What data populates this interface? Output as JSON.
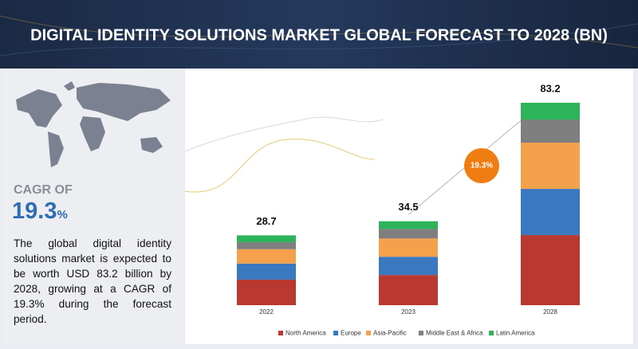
{
  "chart_data": {
    "type": "stacked-bar",
    "title": "DIGITAL IDENTITY SOLUTIONS MARKET GLOBAL FORECAST TO 2028 (BN)",
    "categories": [
      "2022",
      "2023",
      "2028"
    ],
    "totals": [
      28.7,
      34.5,
      83.2
    ],
    "ylim": [
      0,
      90
    ],
    "series": [
      {
        "name": "North America",
        "color": "#b9382f",
        "values": [
          10.5,
          12.4,
          28.8
        ]
      },
      {
        "name": "Europe",
        "color": "#3a78c0",
        "values": [
          6.6,
          7.5,
          19.0
        ]
      },
      {
        "name": "Asia-Pacific",
        "color": "#f5a04a",
        "values": [
          5.9,
          7.5,
          19.0
        ]
      },
      {
        "name": "Middle East & Africa",
        "color": "#7f7f7f",
        "values": [
          2.9,
          3.9,
          9.5
        ]
      },
      {
        "name": "Latin America",
        "color": "#2db45a",
        "values": [
          2.8,
          3.2,
          6.9
        ]
      }
    ],
    "cagr_bubble": "19.3%",
    "cagr_label": "CAGR OF",
    "cagr_value": "19.3",
    "cagr_unit": "%",
    "description": "The global digital identity solutions market is expected to be worth USD 83.2 billion by 2028, growing at a CAGR of 19.3% during the forecast period."
  }
}
